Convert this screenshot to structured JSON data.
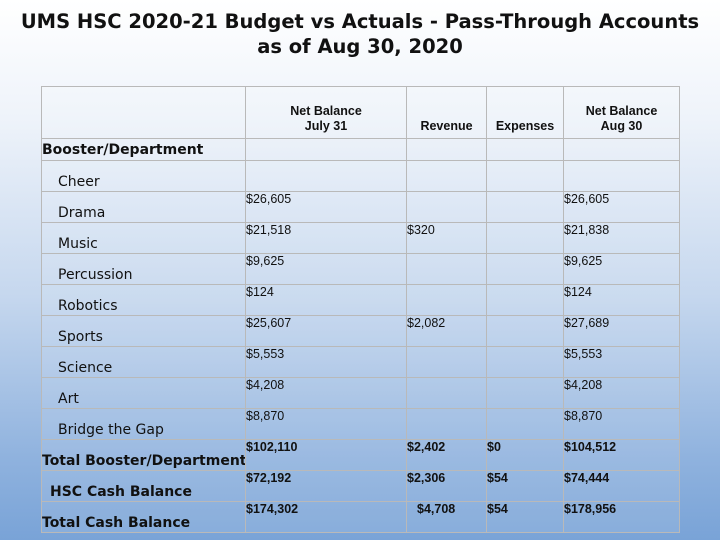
{
  "title": {
    "line1": "UMS HSC 2020-21 Budget vs Actuals - Pass-Through Accounts",
    "line2": "as of Aug 30, 2020"
  },
  "table": {
    "headers": {
      "net_balance_start_1": "Net Balance",
      "net_balance_start_2": "July 31",
      "revenue": "Revenue",
      "expenses": "Expenses",
      "net_balance_end_1": "Net Balance",
      "net_balance_end_2": "Aug 30"
    },
    "section_label": "Booster/Department",
    "rows": [
      {
        "label": "Cheer",
        "start": "",
        "revenue": "",
        "expenses": "",
        "end": ""
      },
      {
        "label": "Drama",
        "start": "$26,605",
        "revenue": "",
        "expenses": "",
        "end": "$26,605"
      },
      {
        "label": "Music",
        "start": "$21,518",
        "revenue": "$320",
        "expenses": "",
        "end": "$21,838"
      },
      {
        "label": "Percussion",
        "start": "$9,625",
        "revenue": "",
        "expenses": "",
        "end": "$9,625"
      },
      {
        "label": "Robotics",
        "start": "$124",
        "revenue": "",
        "expenses": "",
        "end": "$124"
      },
      {
        "label": "Sports",
        "start": "$25,607",
        "revenue": "$2,082",
        "expenses": "",
        "end": "$27,689"
      },
      {
        "label": "Science",
        "start": "$5,553",
        "revenue": "",
        "expenses": "",
        "end": "$5,553"
      },
      {
        "label": "Art",
        "start": "$4,208",
        "revenue": "",
        "expenses": "",
        "end": "$4,208"
      },
      {
        "label": "Bridge the Gap",
        "start": "$8,870",
        "revenue": "",
        "expenses": "",
        "end": "$8,870"
      }
    ],
    "totals": [
      {
        "label": "Total Booster/Department",
        "start": "$102,110",
        "revenue": "$2,402",
        "expenses": "$0",
        "end": "$104,512"
      },
      {
        "label": "HSC Cash Balance",
        "start": "$72,192",
        "revenue": "$2,306",
        "expenses": "$54",
        "end": "$74,444"
      },
      {
        "label": "Total Cash Balance",
        "start": "$174,302",
        "revenue": "$4,708",
        "expenses": "$54",
        "end": "$178,956"
      }
    ]
  }
}
